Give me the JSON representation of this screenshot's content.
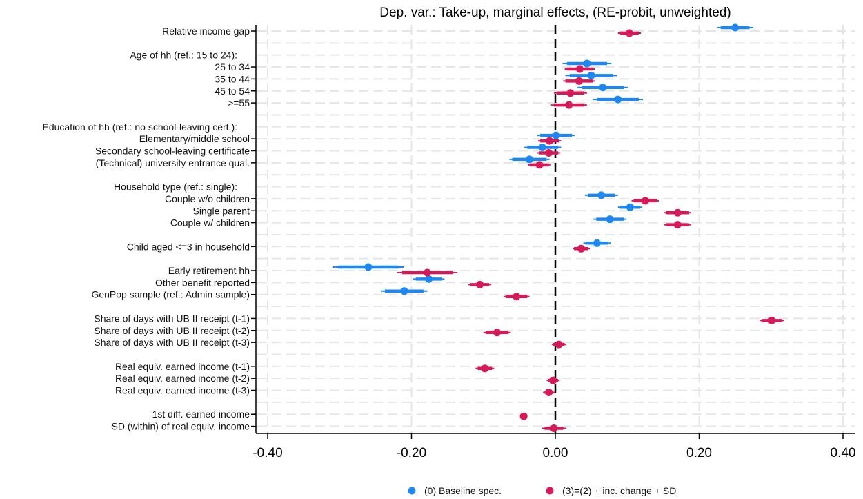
{
  "chart_data": {
    "type": "scatter",
    "subtype": "coefficient-plot",
    "title": "Dep. var.: Take-up, marginal effects, (RE-probit, unweighted)",
    "xlabel": "",
    "ylabel": "",
    "xlim": [
      -0.42,
      0.42
    ],
    "xticks": [
      -0.4,
      -0.2,
      0.0,
      0.2,
      0.4
    ],
    "xtick_labels": [
      "-0.40",
      "-0.20",
      "0.00",
      "0.20",
      "0.40"
    ],
    "reference_line": 0.0,
    "grid": true,
    "legend_position": "bottom",
    "colors": {
      "baseline": "#1e88f0",
      "extended": "#d41a59",
      "reference_line": "#000000",
      "grid": "#e6e6e6"
    },
    "rows": [
      {
        "label": "Relative income gap",
        "type": "var"
      },
      {
        "label": "",
        "type": "blank"
      },
      {
        "label": "Age of hh (ref.: 15 to 24):",
        "type": "header"
      },
      {
        "label": "25 to 34",
        "type": "var"
      },
      {
        "label": "35 to 44",
        "type": "var"
      },
      {
        "label": "45 to 54",
        "type": "var"
      },
      {
        "label": ">=55",
        "type": "var"
      },
      {
        "label": "",
        "type": "blank"
      },
      {
        "label": "Education of hh (ref.: no school-leaving cert.):",
        "type": "header"
      },
      {
        "label": "Elementary/middle school",
        "type": "var"
      },
      {
        "label": "Secondary school-leaving certificate",
        "type": "var"
      },
      {
        "label": "(Technical) university entrance qual.",
        "type": "var"
      },
      {
        "label": "",
        "type": "blank"
      },
      {
        "label": "Household type (ref.: single):",
        "type": "header"
      },
      {
        "label": "Couple w/o children",
        "type": "var"
      },
      {
        "label": "Single parent",
        "type": "var"
      },
      {
        "label": "Couple w/ children",
        "type": "var"
      },
      {
        "label": "",
        "type": "blank"
      },
      {
        "label": "Child aged <=3 in household",
        "type": "var"
      },
      {
        "label": "",
        "type": "blank"
      },
      {
        "label": "Early retirement hh",
        "type": "var"
      },
      {
        "label": "Other benefit reported",
        "type": "var"
      },
      {
        "label": "GenPop sample (ref.: Admin sample)",
        "type": "var"
      },
      {
        "label": "",
        "type": "blank"
      },
      {
        "label": "Share of days with UB II receipt (t-1)",
        "type": "var"
      },
      {
        "label": "Share of days with UB II receipt (t-2)",
        "type": "var"
      },
      {
        "label": "Share of days with UB II receipt (t-3)",
        "type": "var"
      },
      {
        "label": "",
        "type": "blank"
      },
      {
        "label": "Real equiv. earned income (t-1)",
        "type": "var"
      },
      {
        "label": "Real equiv. earned income (t-2)",
        "type": "var"
      },
      {
        "label": "Real equiv. earned income (t-3)",
        "type": "var"
      },
      {
        "label": "",
        "type": "blank"
      },
      {
        "label": "1st diff. earned income",
        "type": "var"
      },
      {
        "label": "SD (within) of real equiv. income",
        "type": "var"
      }
    ],
    "series": [
      {
        "name": "(0) Baseline spec.",
        "key": "baseline",
        "points": [
          {
            "row": 0,
            "est": 0.25,
            "ci95": [
              0.225,
              0.275
            ],
            "ci90": [
              0.23,
              0.27
            ]
          },
          {
            "row": 3,
            "est": 0.044,
            "ci95": [
              0.01,
              0.078
            ],
            "ci90": [
              0.016,
              0.072
            ]
          },
          {
            "row": 4,
            "est": 0.05,
            "ci95": [
              0.014,
              0.086
            ],
            "ci90": [
              0.02,
              0.08
            ]
          },
          {
            "row": 5,
            "est": 0.066,
            "ci95": [
              0.031,
              0.101
            ],
            "ci90": [
              0.037,
              0.095
            ]
          },
          {
            "row": 6,
            "est": 0.087,
            "ci95": [
              0.052,
              0.122
            ],
            "ci90": [
              0.058,
              0.116
            ]
          },
          {
            "row": 9,
            "est": 0.001,
            "ci95": [
              -0.025,
              0.027
            ],
            "ci90": [
              -0.021,
              0.023
            ]
          },
          {
            "row": 10,
            "est": -0.018,
            "ci95": [
              -0.043,
              0.008
            ],
            "ci90": [
              -0.039,
              0.004
            ]
          },
          {
            "row": 11,
            "est": -0.036,
            "ci95": [
              -0.064,
              -0.008
            ],
            "ci90": [
              -0.06,
              -0.012
            ]
          },
          {
            "row": 14,
            "est": 0.064,
            "ci95": [
              0.041,
              0.087
            ],
            "ci90": [
              0.045,
              0.083
            ]
          },
          {
            "row": 15,
            "est": 0.104,
            "ci95": [
              0.087,
              0.121
            ],
            "ci90": [
              0.09,
              0.118
            ]
          },
          {
            "row": 16,
            "est": 0.076,
            "ci95": [
              0.053,
              0.099
            ],
            "ci90": [
              0.057,
              0.095
            ]
          },
          {
            "row": 18,
            "est": 0.058,
            "ci95": [
              0.039,
              0.077
            ],
            "ci90": [
              0.042,
              0.074
            ]
          },
          {
            "row": 20,
            "est": -0.26,
            "ci95": [
              -0.31,
              -0.21
            ],
            "ci90": [
              -0.302,
              -0.218
            ]
          },
          {
            "row": 21,
            "est": -0.176,
            "ci95": [
              -0.198,
              -0.154
            ],
            "ci90": [
              -0.194,
              -0.158
            ]
          },
          {
            "row": 22,
            "est": -0.21,
            "ci95": [
              -0.242,
              -0.178
            ],
            "ci90": [
              -0.237,
              -0.183
            ]
          }
        ]
      },
      {
        "name": "(3)=(2) + inc. change + SD",
        "key": "extended",
        "points": [
          {
            "row": 0,
            "est": 0.103,
            "ci95": [
              0.087,
              0.119
            ],
            "ci90": [
              0.09,
              0.116
            ]
          },
          {
            "row": 3,
            "est": 0.034,
            "ci95": [
              0.013,
              0.055
            ],
            "ci90": [
              0.016,
              0.052
            ]
          },
          {
            "row": 4,
            "est": 0.033,
            "ci95": [
              0.011,
              0.055
            ],
            "ci90": [
              0.014,
              0.052
            ]
          },
          {
            "row": 5,
            "est": 0.021,
            "ci95": [
              -0.002,
              0.044
            ],
            "ci90": [
              0.002,
              0.04
            ]
          },
          {
            "row": 6,
            "est": 0.019,
            "ci95": [
              -0.006,
              0.044
            ],
            "ci90": [
              -0.002,
              0.04
            ]
          },
          {
            "row": 9,
            "est": -0.008,
            "ci95": [
              -0.024,
              0.008
            ],
            "ci90": [
              -0.021,
              0.005
            ]
          },
          {
            "row": 10,
            "est": -0.009,
            "ci95": [
              -0.025,
              0.007
            ],
            "ci90": [
              -0.022,
              0.004
            ]
          },
          {
            "row": 11,
            "est": -0.022,
            "ci95": [
              -0.038,
              -0.006
            ],
            "ci90": [
              -0.035,
              -0.009
            ]
          },
          {
            "row": 14,
            "est": 0.125,
            "ci95": [
              0.106,
              0.144
            ],
            "ci90": [
              0.109,
              0.141
            ]
          },
          {
            "row": 15,
            "est": 0.17,
            "ci95": [
              0.151,
              0.189
            ],
            "ci90": [
              0.154,
              0.186
            ]
          },
          {
            "row": 16,
            "est": 0.17,
            "ci95": [
              0.151,
              0.189
            ],
            "ci90": [
              0.154,
              0.186
            ]
          },
          {
            "row": 18,
            "est": 0.036,
            "ci95": [
              0.024,
              0.048
            ],
            "ci90": [
              0.026,
              0.046
            ]
          },
          {
            "row": 20,
            "est": -0.178,
            "ci95": [
              -0.22,
              -0.136
            ],
            "ci90": [
              -0.213,
              -0.143
            ]
          },
          {
            "row": 21,
            "est": -0.105,
            "ci95": [
              -0.121,
              -0.089
            ],
            "ci90": [
              -0.118,
              -0.092
            ]
          },
          {
            "row": 22,
            "est": -0.054,
            "ci95": [
              -0.072,
              -0.036
            ],
            "ci90": [
              -0.069,
              -0.039
            ]
          },
          {
            "row": 24,
            "est": 0.301,
            "ci95": [
              0.284,
              0.318
            ],
            "ci90": [
              0.287,
              0.315
            ]
          },
          {
            "row": 25,
            "est": -0.081,
            "ci95": [
              -0.1,
              -0.062
            ],
            "ci90": [
              -0.097,
              -0.065
            ]
          },
          {
            "row": 26,
            "est": 0.005,
            "ci95": [
              -0.005,
              0.015
            ],
            "ci90": [
              -0.003,
              0.013
            ]
          },
          {
            "row": 28,
            "est": -0.098,
            "ci95": [
              -0.111,
              -0.085
            ],
            "ci90": [
              -0.108,
              -0.088
            ]
          },
          {
            "row": 29,
            "est": -0.003,
            "ci95": [
              -0.012,
              0.006
            ],
            "ci90": [
              -0.01,
              0.004
            ]
          },
          {
            "row": 30,
            "est": -0.009,
            "ci95": [
              -0.017,
              0.0
            ],
            "ci90": [
              -0.015,
              -0.003
            ]
          },
          {
            "row": 32,
            "est": -0.044,
            "ci95": [
              -0.049,
              -0.039
            ],
            "ci90": [
              -0.048,
              -0.04
            ]
          },
          {
            "row": 33,
            "est": -0.002,
            "ci95": [
              -0.019,
              0.015
            ],
            "ci90": [
              -0.015,
              0.011
            ]
          }
        ]
      }
    ]
  }
}
